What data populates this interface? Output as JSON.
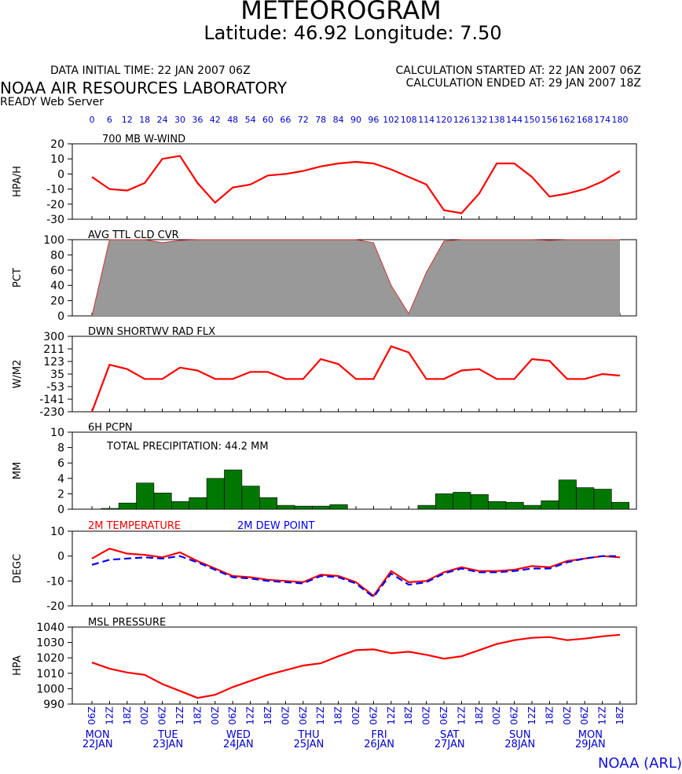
{
  "header": {
    "title": "METEOROGRAM",
    "coordinates": "Latitude: 46.92 Longitude:   7.50",
    "initial_time": "DATA INITIAL TIME: 22 JAN 2007 06Z",
    "calc_started": "CALCULATION STARTED AT: 22 JAN 2007 06Z",
    "calc_ended": "CALCULATION ENDED AT: 29 JAN 2007 18Z",
    "organization": "NOAA AIR RESOURCES LABORATORY",
    "server": "READY Web Server"
  },
  "footer": {
    "credit": "NOAA (ARL)"
  },
  "colors": {
    "line": "#ff0000",
    "dew": "#0000ff",
    "cloud_fill": "#999999",
    "precip": "#007700",
    "axis_text": "#0000cc"
  },
  "forecast_hours": [
    "0",
    "6",
    "12",
    "18",
    "24",
    "30",
    "36",
    "42",
    "48",
    "54",
    "60",
    "66",
    "72",
    "78",
    "84",
    "90",
    "96",
    "102",
    "108",
    "114",
    "120",
    "126",
    "132",
    "138",
    "144",
    "150",
    "156",
    "162",
    "168",
    "174",
    "180"
  ],
  "chart_data": [
    {
      "type": "line",
      "title": "700 MB  W-WIND",
      "ylabel": "HPA/H",
      "ylim": [
        -30,
        20
      ],
      "yticks": [
        "20",
        "10",
        "0",
        "-10",
        "-20",
        "-30"
      ],
      "series": [
        {
          "values": [
            -2,
            -10,
            -11,
            -6,
            10,
            12,
            -6,
            -19,
            -9,
            -7,
            -1,
            0,
            2,
            5,
            7,
            8,
            7,
            3,
            -2,
            -7,
            -24,
            -26,
            -13,
            7,
            7,
            -2,
            -15,
            -13,
            -10,
            -5,
            2
          ]
        }
      ]
    },
    {
      "type": "area",
      "title": "AVG TTL CLD CVR",
      "ylabel": "PCT",
      "ylim": [
        0,
        100
      ],
      "yticks": [
        "100",
        "80",
        "60",
        "40",
        "20",
        "0"
      ],
      "series": [
        {
          "values": [
            0,
            100,
            100,
            100,
            96,
            99,
            100,
            100,
            100,
            100,
            100,
            100,
            100,
            100,
            100,
            100,
            96,
            40,
            3,
            57,
            98,
            100,
            100,
            100,
            100,
            100,
            99,
            100,
            100,
            100,
            100
          ]
        }
      ]
    },
    {
      "type": "line",
      "title": "DWN SHORTWV RAD FLX",
      "ylabel": "W/M2",
      "ylim": [
        -230,
        300
      ],
      "yticks": [
        "300",
        "211",
        "123",
        "35",
        "-53",
        "-141",
        "-230"
      ],
      "series": [
        {
          "values": [
            -230,
            100,
            70,
            0,
            0,
            80,
            60,
            0,
            0,
            50,
            50,
            0,
            0,
            140,
            105,
            0,
            0,
            230,
            187,
            0,
            0,
            60,
            70,
            0,
            0,
            140,
            128,
            0,
            0,
            35,
            24
          ]
        }
      ]
    },
    {
      "type": "bar",
      "title": "6H PCPN",
      "annotation": "TOTAL PRECIPITATION:  44.2 MM",
      "ylabel": "MM",
      "ylim": [
        0,
        10
      ],
      "yticks": [
        "10",
        "8",
        "6",
        "4",
        "2",
        "0"
      ],
      "series": [
        {
          "values": [
            0,
            0.1,
            0.8,
            3.4,
            2.1,
            1.0,
            1.5,
            4.0,
            5.1,
            3.0,
            1.5,
            0.5,
            0.4,
            0.4,
            0.6,
            0,
            0,
            0,
            0,
            0.5,
            2.0,
            2.2,
            1.9,
            1.0,
            0.9,
            0.5,
            1.1,
            3.8,
            2.8,
            2.6,
            0.9
          ]
        }
      ]
    },
    {
      "type": "line",
      "ylabel": "DEGC",
      "ylim": [
        -20,
        10
      ],
      "yticks": [
        "10",
        "0",
        "-10",
        "-20"
      ],
      "series": [
        {
          "name": "2M TEMPERATURE",
          "values": [
            -1,
            3,
            1,
            0.5,
            -0.5,
            1.5,
            -2,
            -5,
            -8,
            -8.5,
            -9.5,
            -10,
            -10.5,
            -7.5,
            -8,
            -10.5,
            -16,
            -6,
            -10.5,
            -10,
            -6.5,
            -4.5,
            -6,
            -6,
            -5.5,
            -4,
            -4.5,
            -2,
            -1,
            0,
            -0.5
          ]
        },
        {
          "name": "2M   DEW POINT",
          "values": [
            -3.5,
            -1.5,
            -1,
            -0.5,
            -1,
            0,
            -2.5,
            -5.5,
            -8.5,
            -9,
            -10,
            -10.5,
            -11,
            -8,
            -8.5,
            -11,
            -16.5,
            -7,
            -11.5,
            -10.5,
            -7,
            -5,
            -6.5,
            -6.5,
            -6,
            -5,
            -5,
            -2.5,
            -1,
            0,
            0
          ]
        }
      ]
    },
    {
      "type": "line",
      "title": "MSL PRESSURE",
      "ylabel": "HPA",
      "ylim": [
        990,
        1040
      ],
      "yticks": [
        "1040",
        "1030",
        "1020",
        "1010",
        "1000",
        "990"
      ],
      "series": [
        {
          "values": [
            1017,
            1013,
            1010.5,
            1009,
            1003,
            998.5,
            994,
            996,
            1001,
            1005,
            1009,
            1012,
            1015,
            1016.5,
            1021,
            1025,
            1025.5,
            1023,
            1024,
            1022,
            1019.5,
            1021,
            1025,
            1029,
            1031.5,
            1033,
            1033.5,
            1031.5,
            1032.5,
            1034,
            1035
          ]
        }
      ]
    }
  ],
  "time_axis": {
    "labels": [
      "06Z",
      "12Z",
      "18Z",
      "00Z",
      "06Z",
      "12Z",
      "18Z",
      "00Z",
      "06Z",
      "12Z",
      "18Z",
      "00Z",
      "06Z",
      "12Z",
      "18Z",
      "00Z",
      "06Z",
      "12Z",
      "18Z",
      "00Z",
      "06Z",
      "12Z",
      "18Z",
      "00Z",
      "06Z",
      "12Z",
      "18Z",
      "00Z",
      "06Z",
      "12Z",
      "18Z"
    ],
    "days": [
      {
        "name": "MON",
        "date": "22JAN"
      },
      {
        "name": "TUE",
        "date": "23JAN"
      },
      {
        "name": "WED",
        "date": "24JAN"
      },
      {
        "name": "THU",
        "date": "25JAN"
      },
      {
        "name": "FRI",
        "date": "26JAN"
      },
      {
        "name": "SAT",
        "date": "27JAN"
      },
      {
        "name": "SUN",
        "date": "28JAN"
      },
      {
        "name": "MON",
        "date": "29JAN"
      }
    ]
  }
}
